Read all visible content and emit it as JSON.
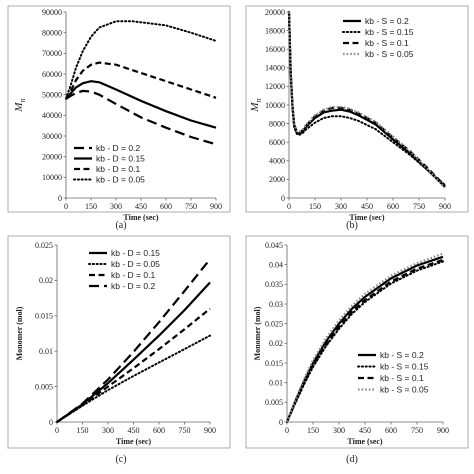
{
  "chart_data": [
    {
      "type": "line",
      "panel_label": "(a)",
      "xlabel": "Time (sec)",
      "ylabel_main": "M",
      "ylabel_sub": "n",
      "xlim": [
        0,
        900
      ],
      "ylim": [
        0,
        90000
      ],
      "xticks": [
        "0",
        "150",
        "300",
        "450",
        "600",
        "750",
        "900"
      ],
      "yticks": [
        "0",
        "10000",
        "20000",
        "30000",
        "40000",
        "50000",
        "60000",
        "70000",
        "80000",
        "90000"
      ],
      "legend_pos": "bottom-left",
      "series": [
        {
          "name": "kb - D = 0.2",
          "style": "longdash",
          "x": [
            0,
            30,
            60,
            100,
            150,
            200,
            300,
            450,
            600,
            750,
            900
          ],
          "y": [
            48000,
            49500,
            50800,
            51800,
            51500,
            50000,
            45500,
            39000,
            34000,
            29500,
            26000
          ]
        },
        {
          "name": "kb - D = 0.15",
          "style": "solid",
          "x": [
            0,
            30,
            60,
            100,
            150,
            200,
            300,
            450,
            600,
            750,
            900
          ],
          "y": [
            48000,
            50800,
            53500,
            55500,
            56500,
            56000,
            52500,
            47000,
            42000,
            37500,
            34000
          ]
        },
        {
          "name": "kb - D = 0.1",
          "style": "dash",
          "x": [
            0,
            30,
            60,
            100,
            150,
            200,
            300,
            450,
            600,
            750,
            900
          ],
          "y": [
            48000,
            52000,
            57000,
            61500,
            64500,
            65500,
            64500,
            60500,
            56500,
            52500,
            48500
          ]
        },
        {
          "name": "kb - D = 0.05",
          "style": "dot",
          "x": [
            0,
            30,
            60,
            100,
            150,
            200,
            300,
            400,
            450,
            600,
            750,
            900
          ],
          "y": [
            48000,
            55000,
            63000,
            71000,
            78000,
            82500,
            85500,
            85500,
            85000,
            83500,
            80000,
            76000
          ]
        }
      ]
    },
    {
      "type": "line",
      "panel_label": "(b)",
      "xlabel": "Time (sec)",
      "ylabel_main": "M",
      "ylabel_sub": "n",
      "xlim": [
        0,
        900
      ],
      "ylim": [
        0,
        20000
      ],
      "xticks": [
        "0",
        "150",
        "300",
        "450",
        "600",
        "750",
        "900"
      ],
      "yticks": [
        "0",
        "2000",
        "4000",
        "6000",
        "8000",
        "10000",
        "12000",
        "14000",
        "16000",
        "18000",
        "20000"
      ],
      "legend_pos": "top-right",
      "series": [
        {
          "name": "kb - S = 0.2",
          "style": "solid",
          "x": [
            0,
            10,
            20,
            30,
            45,
            60,
            80,
            100,
            150,
            200,
            250,
            300,
            350,
            400,
            500,
            600,
            700,
            800,
            900
          ],
          "y": [
            20000,
            13500,
            9800,
            7800,
            7000,
            6900,
            7200,
            7700,
            8600,
            9200,
            9400,
            9500,
            9300,
            8900,
            7900,
            6300,
            4800,
            3000,
            1200
          ]
        },
        {
          "name": "kb - S = 0.15",
          "style": "dot",
          "x": [
            0,
            10,
            20,
            30,
            45,
            60,
            80,
            100,
            150,
            200,
            250,
            300,
            350,
            400,
            500,
            600,
            700,
            800,
            900
          ],
          "y": [
            20000,
            13300,
            9600,
            7600,
            6900,
            6800,
            7000,
            7400,
            8100,
            8600,
            8800,
            8800,
            8600,
            8300,
            7400,
            6000,
            4600,
            3000,
            1400
          ]
        },
        {
          "name": "kb - S = 0.1",
          "style": "dash",
          "x": [
            0,
            10,
            20,
            30,
            45,
            60,
            80,
            100,
            150,
            200,
            250,
            300,
            350,
            400,
            500,
            600,
            700,
            800,
            900
          ],
          "y": [
            20000,
            13600,
            9900,
            7900,
            7100,
            7000,
            7300,
            7800,
            8800,
            9400,
            9700,
            9700,
            9500,
            9100,
            8100,
            6500,
            5000,
            3200,
            1300
          ]
        },
        {
          "name": "kb - S = 0.05",
          "style": "graydot",
          "x": [
            0,
            10,
            20,
            30,
            45,
            60,
            80,
            100,
            150,
            200,
            250,
            300,
            350,
            400,
            500,
            600,
            700,
            800,
            900
          ],
          "y": [
            20000,
            13700,
            10000,
            8000,
            7200,
            7100,
            7400,
            7900,
            8900,
            9500,
            9800,
            9800,
            9600,
            9200,
            8200,
            6600,
            5000,
            3100,
            1100
          ]
        }
      ]
    },
    {
      "type": "line",
      "panel_label": "(c)",
      "xlabel": "Time (sec)",
      "ylabel_main": "Monomer (mol)",
      "xlim": [
        0,
        900
      ],
      "ylim": [
        0,
        0.025
      ],
      "xticks": [
        "0",
        "150",
        "300",
        "450",
        "600",
        "750",
        "900"
      ],
      "yticks": [
        "0",
        "0.005",
        "0.01",
        "0.015",
        "0.02",
        "0.025"
      ],
      "legend_pos": "top-left",
      "series": [
        {
          "name": "kb - D = 0.15",
          "style": "solid",
          "x": [
            0,
            150,
            300,
            450,
            600,
            750,
            900
          ],
          "y": [
            0,
            0.0025,
            0.0055,
            0.0088,
            0.0122,
            0.0158,
            0.0197
          ]
        },
        {
          "name": "kb - D = 0.05",
          "style": "dot",
          "x": [
            0,
            150,
            300,
            450,
            600,
            750,
            900
          ],
          "y": [
            0,
            0.0023,
            0.0045,
            0.0065,
            0.0084,
            0.0103,
            0.0122
          ]
        },
        {
          "name": "kb - D = 0.1",
          "style": "dash",
          "x": [
            0,
            150,
            300,
            450,
            600,
            750,
            900
          ],
          "y": [
            0,
            0.0024,
            0.005,
            0.0076,
            0.0103,
            0.0131,
            0.016
          ]
        },
        {
          "name": "kb - D = 0.2",
          "style": "longdash",
          "x": [
            0,
            150,
            300,
            450,
            600,
            750,
            900
          ],
          "y": [
            0,
            0.0026,
            0.006,
            0.0099,
            0.0141,
            0.0185,
            0.023
          ]
        }
      ]
    },
    {
      "type": "line",
      "panel_label": "(d)",
      "xlabel": "Time (sec)",
      "ylabel_main": "Monomer (mol)",
      "xlim": [
        0,
        900
      ],
      "ylim": [
        0,
        0.045
      ],
      "xticks": [
        "0",
        "150",
        "300",
        "450",
        "600",
        "750",
        "900"
      ],
      "yticks": [
        "0",
        "0.005",
        "0.01",
        "0.015",
        "0.02",
        "0.025",
        "0.03",
        "0.035",
        "0.04",
        "0.045"
      ],
      "legend_pos": "bottom-right",
      "series": [
        {
          "name": "kb - S = 0.2",
          "style": "solid",
          "x": [
            0,
            50,
            100,
            150,
            225,
            300,
            375,
            450,
            600,
            750,
            900
          ],
          "y": [
            0,
            0.0055,
            0.0105,
            0.015,
            0.0205,
            0.025,
            0.0288,
            0.0318,
            0.0365,
            0.0398,
            0.042
          ]
        },
        {
          "name": "kb - S = 0.15",
          "style": "dot",
          "x": [
            0,
            50,
            100,
            150,
            225,
            300,
            375,
            450,
            600,
            750,
            900
          ],
          "y": [
            0,
            0.005,
            0.0097,
            0.014,
            0.0193,
            0.0237,
            0.0275,
            0.0305,
            0.0352,
            0.0385,
            0.0408
          ]
        },
        {
          "name": "kb - S = 0.1",
          "style": "dash",
          "x": [
            0,
            50,
            100,
            150,
            225,
            300,
            375,
            450,
            600,
            750,
            900
          ],
          "y": [
            0,
            0.0052,
            0.01,
            0.0144,
            0.0197,
            0.0242,
            0.028,
            0.031,
            0.0357,
            0.039,
            0.0412
          ]
        },
        {
          "name": "kb - S = 0.05",
          "style": "graydot",
          "x": [
            0,
            50,
            100,
            150,
            225,
            300,
            375,
            450,
            600,
            750,
            900
          ],
          "y": [
            0,
            0.0058,
            0.011,
            0.0157,
            0.0213,
            0.0258,
            0.0296,
            0.0326,
            0.0372,
            0.0404,
            0.0428
          ]
        }
      ]
    }
  ]
}
